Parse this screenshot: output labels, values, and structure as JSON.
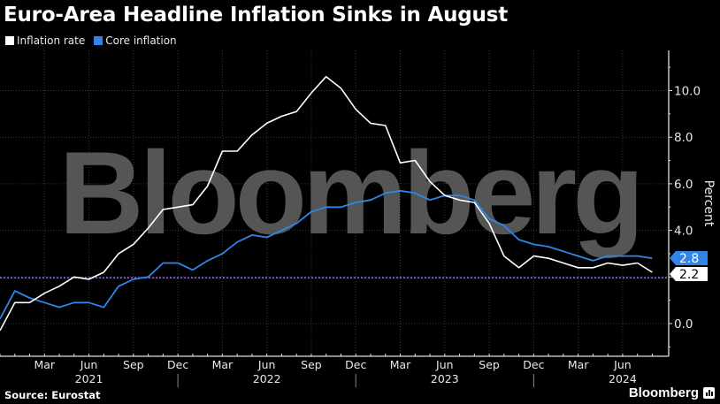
{
  "header": {
    "title": "Euro-Area Headline Inflation Sinks in August"
  },
  "legend": [
    {
      "label": "Inflation rate",
      "color": "#ffffff"
    },
    {
      "label": "Core inflation",
      "color": "#2f86e8"
    }
  ],
  "footer": {
    "source": "Source: Eurostat",
    "brand": "Bloomberg"
  },
  "watermark": "Bloomberg",
  "colors": {
    "background": "#000000",
    "inflation": "#ffffff",
    "core": "#2f86e8",
    "target_line": "#9b6be0",
    "grid": "#3a3a3a",
    "watermark": "#555555"
  },
  "chart_data": {
    "type": "line",
    "title": "Euro-Area Headline Inflation Sinks in August",
    "xlabel": "",
    "ylabel": "Percent",
    "ylim": [
      -1.4,
      11.7
    ],
    "yticks": [
      0.0,
      2.0,
      4.0,
      6.0,
      8.0,
      10.0
    ],
    "ytick_labels": [
      "0.0",
      "2.0",
      "4.0",
      "6.0",
      "8.0",
      "10.0"
    ],
    "grid": true,
    "legend_position": "top-left",
    "x_tick_labels": [
      "Mar",
      "Jun",
      "Sep",
      "Dec",
      "Mar",
      "Jun",
      "Sep",
      "Dec",
      "Mar",
      "Jun",
      "Sep",
      "Dec",
      "Mar",
      "Jun"
    ],
    "x_tick_month_index": [
      3,
      6,
      9,
      12,
      15,
      18,
      21,
      24,
      27,
      30,
      33,
      36,
      39,
      42
    ],
    "year_labels": [
      {
        "label": "2021",
        "month_index": 6
      },
      {
        "label": "2022",
        "month_index": 18
      },
      {
        "label": "2023",
        "month_index": 30
      },
      {
        "label": "2024",
        "month_index": 42
      }
    ],
    "year_dividers": [
      12,
      24,
      36
    ],
    "x": [
      "Dec 2020",
      "Jan 2021",
      "Feb 2021",
      "Mar 2021",
      "Apr 2021",
      "May 2021",
      "Jun 2021",
      "Jul 2021",
      "Aug 2021",
      "Sep 2021",
      "Oct 2021",
      "Nov 2021",
      "Dec 2021",
      "Jan 2022",
      "Feb 2022",
      "Mar 2022",
      "Apr 2022",
      "May 2022",
      "Jun 2022",
      "Jul 2022",
      "Aug 2022",
      "Sep 2022",
      "Oct 2022",
      "Nov 2022",
      "Dec 2022",
      "Jan 2023",
      "Feb 2023",
      "Mar 2023",
      "Apr 2023",
      "May 2023",
      "Jun 2023",
      "Jul 2023",
      "Aug 2023",
      "Sep 2023",
      "Oct 2023",
      "Nov 2023",
      "Dec 2023",
      "Jan 2024",
      "Feb 2024",
      "Mar 2024",
      "Apr 2024",
      "May 2024",
      "Jun 2024",
      "Jul 2024",
      "Aug 2024"
    ],
    "series": [
      {
        "name": "Inflation rate",
        "color": "#ffffff",
        "values": [
          -0.3,
          0.9,
          0.9,
          1.3,
          1.6,
          2.0,
          1.9,
          2.2,
          3.0,
          3.4,
          4.1,
          4.9,
          5.0,
          5.1,
          5.9,
          7.4,
          7.4,
          8.1,
          8.6,
          8.9,
          9.1,
          9.9,
          10.6,
          10.1,
          9.2,
          8.6,
          8.5,
          6.9,
          7.0,
          6.1,
          5.5,
          5.3,
          5.2,
          4.3,
          2.9,
          2.4,
          2.9,
          2.8,
          2.6,
          2.4,
          2.4,
          2.6,
          2.5,
          2.6,
          2.2
        ]
      },
      {
        "name": "Core inflation",
        "color": "#2f86e8",
        "values": [
          0.2,
          1.4,
          1.1,
          0.9,
          0.7,
          0.9,
          0.9,
          0.7,
          1.6,
          1.9,
          2.0,
          2.6,
          2.6,
          2.3,
          2.7,
          3.0,
          3.5,
          3.8,
          3.7,
          4.0,
          4.3,
          4.8,
          5.0,
          5.0,
          5.2,
          5.3,
          5.6,
          5.7,
          5.6,
          5.3,
          5.5,
          5.5,
          5.3,
          4.5,
          4.2,
          3.6,
          3.4,
          3.3,
          3.1,
          2.9,
          2.7,
          2.9,
          2.9,
          2.9,
          2.8
        ]
      }
    ],
    "reference_line": {
      "value": 2.0,
      "style": "dotted",
      "color": "#9b6be0"
    },
    "last_value_labels": [
      {
        "series": "Core inflation",
        "label": "2.8",
        "bg": "#2f86e8",
        "fg": "#ffffff"
      },
      {
        "series": "Inflation rate",
        "label": "2.2",
        "bg": "#ffffff",
        "fg": "#000000"
      }
    ]
  }
}
